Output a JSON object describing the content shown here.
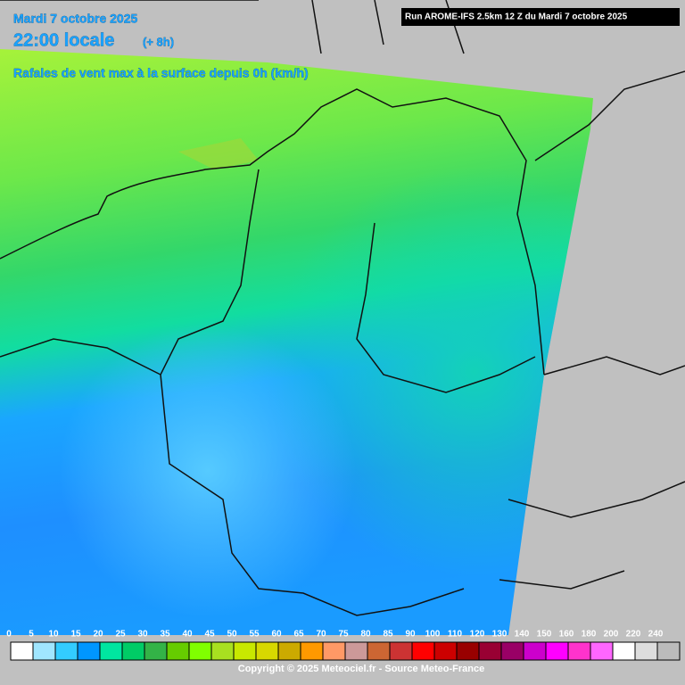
{
  "header": {
    "date": "Mardi 7 octobre 2025",
    "local_time": "22:00 locale",
    "offset": "(+ 8h)",
    "parameter": "Rafales de vent max à la surface depuis 0h (km/h)",
    "run": "Run AROME-IFS 2.5km 12 Z du Mardi 7 octobre 2025"
  },
  "legend": {
    "values": [
      0,
      5,
      10,
      15,
      20,
      25,
      30,
      35,
      40,
      45,
      50,
      55,
      60,
      65,
      70,
      75,
      80,
      85,
      90,
      100,
      110,
      120,
      130,
      140,
      150,
      160,
      180,
      200,
      220,
      240
    ],
    "colors": [
      "#ffffff",
      "#a0e6ff",
      "#33ccff",
      "#0096ff",
      "#00e6a0",
      "#00cc66",
      "#33b347",
      "#66cc00",
      "#80ff00",
      "#a8e020",
      "#c8e800",
      "#d8d800",
      "#ccaa00",
      "#ff9900",
      "#ff9966",
      "#cc9999",
      "#cc6633",
      "#cc3333",
      "#ff0000",
      "#cc0000",
      "#990000",
      "#990033",
      "#990066",
      "#cc00cc",
      "#ff00ff",
      "#ff33cc",
      "#ff66ff",
      "#ffffff",
      "#dddddd",
      "#bbbbbb"
    ]
  },
  "footer": {
    "copyright": "Copyright © 2025 Meteociel.fr - Source Meteo-France"
  }
}
